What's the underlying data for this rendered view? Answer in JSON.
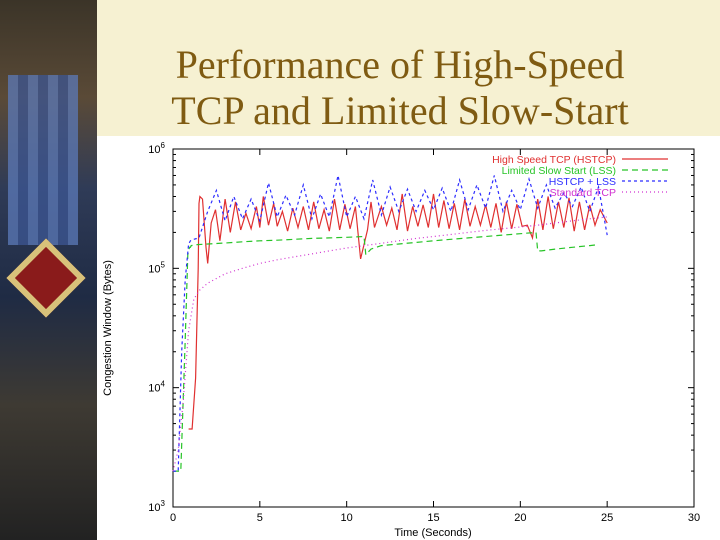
{
  "slide": {
    "title_line1": "Performance of High-Speed",
    "title_line2": "TCP and Limited Slow-Start"
  },
  "chart_data": {
    "type": "line",
    "title": "",
    "xlabel": "Time (Seconds)",
    "ylabel": "Congestion Window (Bytes)",
    "x_ticks": [
      0,
      5,
      10,
      15,
      20,
      25,
      30
    ],
    "y_ticks": [
      {
        "value": 1000,
        "base": "10",
        "exp": "3"
      },
      {
        "value": 10000,
        "base": "10",
        "exp": "4"
      },
      {
        "value": 100000,
        "base": "10",
        "exp": "5"
      },
      {
        "value": 1000000,
        "base": "10",
        "exp": "6"
      }
    ],
    "xlim": [
      0,
      30
    ],
    "ylim": [
      1000,
      1000000
    ],
    "y_scale": "log",
    "grid": false,
    "legend_position": "top-right",
    "series": [
      {
        "name": "High Speed TCP (HSTCP)",
        "color": "#e03030",
        "dash": "none",
        "x": [
          0.9,
          1.1,
          1.3,
          1.45,
          1.5,
          1.55,
          1.7,
          1.9,
          2,
          2.2,
          2.45,
          2.7,
          3,
          3.3,
          3.6,
          3.9,
          4.2,
          4.5,
          4.8,
          5,
          5.2,
          5.5,
          5.8,
          6,
          6.3,
          6.6,
          6.9,
          7.2,
          7.5,
          7.8,
          8.1,
          8.4,
          8.7,
          9,
          9.3,
          9.6,
          9.9,
          10.2,
          10.5,
          10.8,
          11.2,
          11.4,
          11.6,
          12,
          12.3,
          12.6,
          12.9,
          13.2,
          13.5,
          13.8,
          14.1,
          14.4,
          14.7,
          15,
          15.3,
          15.6,
          15.9,
          16.2,
          16.5,
          16.8,
          17.1,
          17.4,
          17.7,
          18,
          18.3,
          18.6,
          18.9,
          19.2,
          19.5,
          19.8,
          20.1,
          20.4,
          20.7,
          21,
          21.3,
          21.6,
          21.9,
          22.2,
          22.5,
          22.8,
          23.1,
          23.4,
          23.7,
          24,
          24.3,
          24.6,
          25
        ],
        "y": [
          4500,
          4500,
          12000,
          100000,
          350000,
          400000,
          380000,
          150000,
          110000,
          240000,
          310000,
          170000,
          380000,
          200000,
          360000,
          210000,
          290000,
          215000,
          330000,
          220000,
          400000,
          230000,
          350000,
          225000,
          300000,
          205000,
          320000,
          220000,
          330000,
          210000,
          360000,
          215000,
          310000,
          205000,
          380000,
          210000,
          345000,
          215000,
          330000,
          120000,
          210000,
          360000,
          220000,
          330000,
          230000,
          320000,
          210000,
          420000,
          205000,
          330000,
          225000,
          340000,
          220000,
          420000,
          220000,
          370000,
          215000,
          350000,
          210000,
          380000,
          225000,
          330000,
          230000,
          340000,
          220000,
          350000,
          200000,
          360000,
          215000,
          345000,
          225000,
          230000,
          180000,
          380000,
          210000,
          400000,
          215000,
          360000,
          220000,
          390000,
          205000,
          360000,
          210000,
          340000,
          230000,
          310000,
          240000
        ]
      },
      {
        "name": "Limited Slow Start (LSS)",
        "color": "#27c427",
        "dash": "6,4",
        "x": [
          0,
          0.45,
          0.7,
          0.85,
          0.95,
          1.0,
          1.05,
          1.4,
          2,
          3,
          4,
          5,
          6,
          7,
          8,
          9,
          10,
          11,
          11.1,
          11.4,
          12,
          13,
          14,
          15,
          16,
          17,
          18,
          19,
          20,
          20.9,
          21,
          21.2,
          22,
          23,
          24,
          24.5
        ],
        "y": [
          2000,
          2000,
          25000,
          130000,
          150000,
          150000,
          155000,
          158000,
          160000,
          163000,
          167000,
          170000,
          172000,
          175000,
          178000,
          180000,
          182000,
          185000,
          130000,
          145000,
          155000,
          160000,
          165000,
          170000,
          175000,
          180000,
          185000,
          190000,
          195000,
          200000,
          140000,
          140000,
          145000,
          150000,
          155000,
          158000
        ]
      },
      {
        "name": "HSTCP + LSS",
        "color": "#2c2cff",
        "dash": "3,3",
        "x": [
          0,
          0.3,
          0.5,
          0.7,
          0.9,
          1.0,
          1.2,
          1.5,
          2,
          2.5,
          3,
          3.5,
          4,
          4.5,
          5,
          5.5,
          6,
          6.5,
          7,
          7.5,
          8,
          8.5,
          9,
          9.5,
          10,
          10.5,
          11,
          11.5,
          12,
          12.5,
          13,
          13.5,
          14,
          14.5,
          15,
          15.5,
          16,
          16.5,
          17,
          17.5,
          18,
          18.5,
          19,
          19.5,
          20,
          20.5,
          21,
          21.5,
          22,
          22.5,
          23,
          23.5,
          24,
          24.5,
          25
        ],
        "y": [
          2000,
          2000,
          20000,
          80000,
          160000,
          170000,
          175000,
          180000,
          300000,
          450000,
          250000,
          400000,
          260000,
          380000,
          250000,
          520000,
          270000,
          410000,
          280000,
          500000,
          260000,
          420000,
          270000,
          600000,
          270000,
          400000,
          260000,
          550000,
          280000,
          480000,
          300000,
          460000,
          300000,
          450000,
          310000,
          470000,
          300000,
          550000,
          310000,
          500000,
          320000,
          600000,
          300000,
          450000,
          310000,
          560000,
          320000,
          500000,
          320000,
          430000,
          330000,
          480000,
          300000,
          480000,
          190000
        ]
      },
      {
        "name": "Standard TCP",
        "color": "#d030d0",
        "dash": "1,3",
        "x": [
          0,
          0.3,
          0.6,
          0.9,
          1.2,
          1.5,
          2,
          3,
          4,
          5,
          6,
          7,
          8,
          9,
          10,
          11,
          12,
          13,
          14,
          15,
          16,
          17,
          18,
          19,
          20,
          21,
          22,
          23,
          24,
          25
        ],
        "y": [
          2000,
          3000,
          8000,
          30000,
          55000,
          65000,
          75000,
          90000,
          100000,
          110000,
          118000,
          125000,
          132000,
          140000,
          148000,
          155000,
          162000,
          170000,
          178000,
          185000,
          192000,
          200000,
          208000,
          215000,
          222000,
          230000,
          240000,
          250000,
          260000,
          270000
        ]
      }
    ]
  }
}
